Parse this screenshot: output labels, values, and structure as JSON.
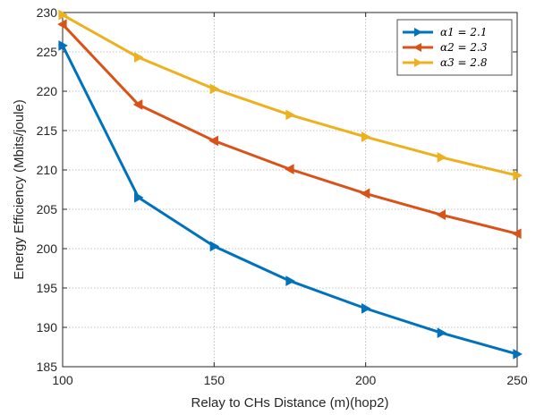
{
  "chart_data": {
    "type": "line",
    "x": [
      100,
      125,
      150,
      175,
      200,
      225,
      250
    ],
    "series": [
      {
        "name": "α1 = 2.1",
        "color": "#0072BD",
        "marker": "triangle-right",
        "values": [
          225.8,
          206.5,
          200.3,
          195.9,
          192.4,
          189.3,
          186.6
        ]
      },
      {
        "name": "α2 = 2.3",
        "color": "#D95319",
        "marker": "triangle-left",
        "values": [
          228.5,
          218.3,
          213.7,
          210.1,
          207.0,
          204.3,
          201.9
        ]
      },
      {
        "name": "α3 = 2.8",
        "color": "#EDB120",
        "marker": "triangle-right",
        "values": [
          229.7,
          224.3,
          220.3,
          217.0,
          214.2,
          211.6,
          209.3
        ]
      }
    ],
    "xlabel": "Relay to CHs Distance (m)(hop2)",
    "ylabel": "Energy Efficiency (Mbits/joule)",
    "xlim": [
      100,
      250
    ],
    "ylim": [
      185,
      230
    ],
    "xticks": [
      100,
      150,
      200,
      250
    ],
    "yticks": [
      185,
      190,
      195,
      200,
      205,
      210,
      215,
      220,
      225,
      230
    ],
    "grid": true,
    "legend_position": "top-right"
  }
}
